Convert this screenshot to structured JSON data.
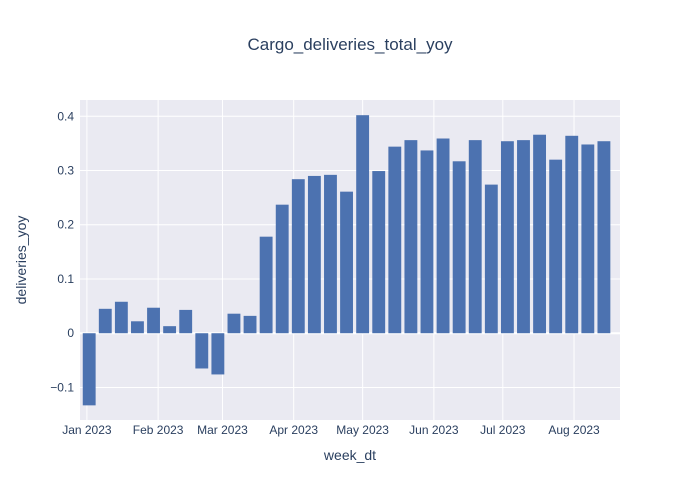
{
  "chart_data": {
    "type": "bar",
    "title": "Cargo_deliveries_total_yoy",
    "xlabel": "week_dt",
    "ylabel": "deliveries_yoy",
    "ylim": [
      -0.16,
      0.43
    ],
    "y_ticks": [
      -0.1,
      0,
      0.1,
      0.2,
      0.3,
      0.4
    ],
    "y_tick_labels": [
      "−0.1",
      "0",
      "0.1",
      "0.2",
      "0.3",
      "0.4"
    ],
    "x_range": [
      "2022-12-29",
      "2023-08-21"
    ],
    "x_ticks": [
      {
        "date": "2023-01-01",
        "label": "Jan 2023"
      },
      {
        "date": "2023-02-01",
        "label": "Feb 2023"
      },
      {
        "date": "2023-03-01",
        "label": "Mar 2023"
      },
      {
        "date": "2023-04-01",
        "label": "Apr 2023"
      },
      {
        "date": "2023-05-01",
        "label": "May 2023"
      },
      {
        "date": "2023-06-01",
        "label": "Jun 2023"
      },
      {
        "date": "2023-07-01",
        "label": "Jul 2023"
      },
      {
        "date": "2023-08-01",
        "label": "Aug 2023"
      }
    ],
    "bar_color": "#4c72b0",
    "background": "#eaeaf2",
    "grid": true,
    "x": [
      "2023-01-02",
      "2023-01-09",
      "2023-01-16",
      "2023-01-23",
      "2023-01-30",
      "2023-02-06",
      "2023-02-13",
      "2023-02-20",
      "2023-02-27",
      "2023-03-06",
      "2023-03-13",
      "2023-03-20",
      "2023-03-27",
      "2023-04-03",
      "2023-04-10",
      "2023-04-17",
      "2023-04-24",
      "2023-05-01",
      "2023-05-08",
      "2023-05-15",
      "2023-05-22",
      "2023-05-29",
      "2023-06-05",
      "2023-06-12",
      "2023-06-19",
      "2023-06-26",
      "2023-07-03",
      "2023-07-10",
      "2023-07-17",
      "2023-07-24",
      "2023-07-31",
      "2023-08-07",
      "2023-08-14"
    ],
    "values": [
      -0.133,
      0.045,
      0.058,
      0.022,
      0.047,
      0.013,
      0.043,
      -0.065,
      -0.076,
      0.036,
      0.032,
      0.178,
      0.237,
      0.284,
      0.29,
      0.292,
      0.261,
      0.402,
      0.299,
      0.344,
      0.356,
      0.337,
      0.359,
      0.317,
      0.356,
      0.274,
      0.354,
      0.356,
      0.366,
      0.32,
      0.364,
      0.348,
      0.354
    ]
  }
}
